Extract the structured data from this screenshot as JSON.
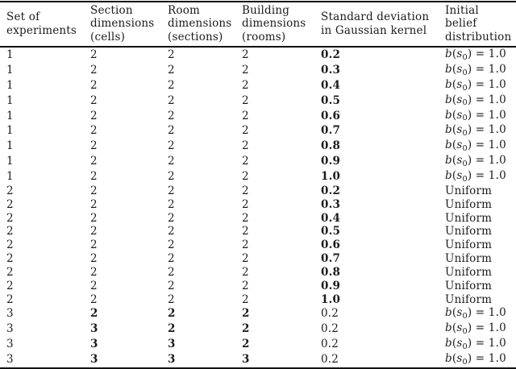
{
  "table": {
    "column_keys": [
      "set",
      "section-dims",
      "room-dims",
      "building-dims",
      "std-dev",
      "belief"
    ],
    "headers": [
      {
        "label": "Set of\nexperiments"
      },
      {
        "label": "Section\ndimensions\n(cells)"
      },
      {
        "label": "Room\ndimensions\n(sections)"
      },
      {
        "label": "Building\ndimensions\n(rooms)"
      },
      {
        "label": "Standard deviation\nin Gaussian kernel"
      },
      {
        "label": "Initial\nbelief\ndistribution"
      }
    ],
    "rows": [
      {
        "cells": [
          "1",
          "2",
          "2",
          "2",
          "0.2",
          "b(s0) = 1.0"
        ],
        "bold": [
          4
        ]
      },
      {
        "cells": [
          "1",
          "2",
          "2",
          "2",
          "0.3",
          "b(s0) = 1.0"
        ],
        "bold": [
          4
        ]
      },
      {
        "cells": [
          "1",
          "2",
          "2",
          "2",
          "0.4",
          "b(s0) = 1.0"
        ],
        "bold": [
          4
        ]
      },
      {
        "cells": [
          "1",
          "2",
          "2",
          "2",
          "0.5",
          "b(s0) = 1.0"
        ],
        "bold": [
          4
        ]
      },
      {
        "cells": [
          "1",
          "2",
          "2",
          "2",
          "0.6",
          "b(s0) = 1.0"
        ],
        "bold": [
          4
        ]
      },
      {
        "cells": [
          "1",
          "2",
          "2",
          "2",
          "0.7",
          "b(s0) = 1.0"
        ],
        "bold": [
          4
        ]
      },
      {
        "cells": [
          "1",
          "2",
          "2",
          "2",
          "0.8",
          "b(s0) = 1.0"
        ],
        "bold": [
          4
        ]
      },
      {
        "cells": [
          "1",
          "2",
          "2",
          "2",
          "0.9",
          "b(s0) = 1.0"
        ],
        "bold": [
          4
        ]
      },
      {
        "cells": [
          "1",
          "2",
          "2",
          "2",
          "1.0",
          "b(s0) = 1.0"
        ],
        "bold": [
          4
        ]
      },
      {
        "cells": [
          "2",
          "2",
          "2",
          "2",
          "0.2",
          "Uniform"
        ],
        "bold": [
          4
        ]
      },
      {
        "cells": [
          "2",
          "2",
          "2",
          "2",
          "0.3",
          "Uniform"
        ],
        "bold": [
          4
        ]
      },
      {
        "cells": [
          "2",
          "2",
          "2",
          "2",
          "0.4",
          "Uniform"
        ],
        "bold": [
          4
        ]
      },
      {
        "cells": [
          "2",
          "2",
          "2",
          "2",
          "0.5",
          "Uniform"
        ],
        "bold": [
          4
        ]
      },
      {
        "cells": [
          "2",
          "2",
          "2",
          "2",
          "0.6",
          "Uniform"
        ],
        "bold": [
          4
        ]
      },
      {
        "cells": [
          "2",
          "2",
          "2",
          "2",
          "0.7",
          "Uniform"
        ],
        "bold": [
          4
        ]
      },
      {
        "cells": [
          "2",
          "2",
          "2",
          "2",
          "0.8",
          "Uniform"
        ],
        "bold": [
          4
        ]
      },
      {
        "cells": [
          "2",
          "2",
          "2",
          "2",
          "0.9",
          "Uniform"
        ],
        "bold": [
          4
        ]
      },
      {
        "cells": [
          "2",
          "2",
          "2",
          "2",
          "1.0",
          "Uniform"
        ],
        "bold": [
          4
        ]
      },
      {
        "cells": [
          "3",
          "2",
          "2",
          "2",
          "0.2",
          "b(s0) = 1.0"
        ],
        "bold": [
          1,
          2,
          3
        ]
      },
      {
        "cells": [
          "3",
          "3",
          "2",
          "2",
          "0.2",
          "b(s0) = 1.0"
        ],
        "bold": [
          1,
          2,
          3
        ]
      },
      {
        "cells": [
          "3",
          "3",
          "3",
          "2",
          "0.2",
          "b(s0) = 1.0"
        ],
        "bold": [
          1,
          2,
          3
        ]
      },
      {
        "cells": [
          "3",
          "3",
          "3",
          "3",
          "0.2",
          "b(s0) = 1.0"
        ],
        "bold": [
          1,
          2,
          3
        ]
      }
    ]
  }
}
